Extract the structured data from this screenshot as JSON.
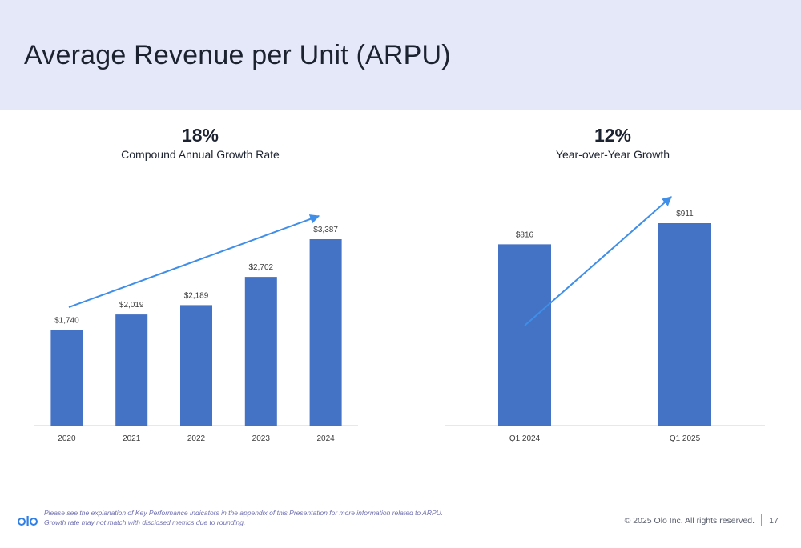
{
  "header": {
    "title": "Average Revenue per Unit (ARPU)"
  },
  "left_stat": {
    "value": "18%",
    "label": "Compound Annual Growth Rate"
  },
  "right_stat": {
    "value": "12%",
    "label": "Year-over-Year Growth"
  },
  "chart_data": [
    {
      "type": "bar",
      "categories": [
        "2020",
        "2021",
        "2022",
        "2023",
        "2024"
      ],
      "values": [
        1740,
        2019,
        2189,
        2702,
        3387
      ],
      "data_labels": [
        "$1,740",
        "$2,019",
        "$2,189",
        "$2,702",
        "$3,387"
      ],
      "title": "",
      "xlabel": "",
      "ylabel": "",
      "ylim": [
        0,
        3387
      ],
      "grid": false,
      "bar_color": "#4472c4",
      "trend_arrow": true,
      "arrow_color": "#3f8ee8"
    },
    {
      "type": "bar",
      "categories": [
        "Q1 2024",
        "Q1 2025"
      ],
      "values": [
        816,
        911
      ],
      "data_labels": [
        "$816",
        "$911"
      ],
      "title": "",
      "xlabel": "",
      "ylabel": "",
      "ylim": [
        0,
        911
      ],
      "grid": false,
      "bar_color": "#4472c4",
      "trend_arrow": true,
      "arrow_color": "#3f8ee8"
    }
  ],
  "footer": {
    "footnote_line1": "Please see the explanation of Key Performance Indicators in the appendix of this Presentation for more information related to ARPU.",
    "footnote_line2": "Growth rate may not match with disclosed metrics due to rounding.",
    "logo_text": "olo",
    "copyright": "© 2025 Olo Inc. All rights reserved.",
    "page_number": "17"
  },
  "colors": {
    "header_band": "#e5e8f9",
    "bar": "#4472c4",
    "arrow": "#3f8ee8",
    "logo": "#2f7fe6"
  }
}
